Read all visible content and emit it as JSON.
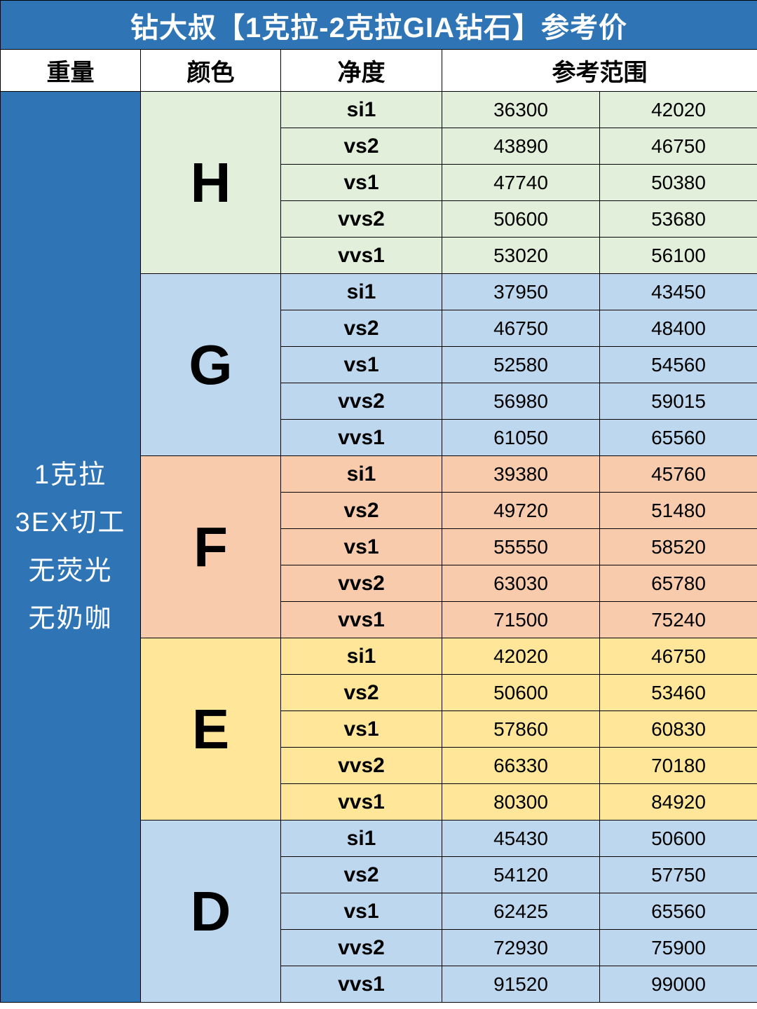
{
  "title": "钻大叔【1克拉-2克拉GIA钻石】参考价",
  "headers": {
    "weight": "重量",
    "color": "颜色",
    "clarity": "净度",
    "range": "参考范围"
  },
  "weight_lines": [
    "1克拉",
    "3EX切工",
    "无荧光",
    "无奶咖"
  ],
  "styling": {
    "title_bg": "#2f75b5",
    "title_color": "#ffffff",
    "header_bg": "#ffffff",
    "weight_bg": "#2f75b5",
    "weight_color": "#ffffff",
    "border_color": "#000000",
    "title_fontsize": 40,
    "header_fontsize": 34,
    "letter_fontsize": 80,
    "clarity_fontsize": 30,
    "price_fontsize": 28
  },
  "groups": [
    {
      "letter": "H",
      "letter_bg": "#e2efda",
      "clarity_bg": "#e2efda",
      "price_bg": "#e2efda",
      "rows": [
        {
          "clarity": "si1",
          "low": "36300",
          "high": "42020"
        },
        {
          "clarity": "vs2",
          "low": "43890",
          "high": "46750"
        },
        {
          "clarity": "vs1",
          "low": "47740",
          "high": "50380"
        },
        {
          "clarity": "vvs2",
          "low": "50600",
          "high": "53680"
        },
        {
          "clarity": "vvs1",
          "low": "53020",
          "high": "56100"
        }
      ]
    },
    {
      "letter": "G",
      "letter_bg": "#bdd7ee",
      "clarity_bg": "#bdd7ee",
      "price_bg": "#bdd7ee",
      "rows": [
        {
          "clarity": "si1",
          "low": "37950",
          "high": "43450"
        },
        {
          "clarity": "vs2",
          "low": "46750",
          "high": "48400"
        },
        {
          "clarity": "vs1",
          "low": "52580",
          "high": "54560"
        },
        {
          "clarity": "vvs2",
          "low": "56980",
          "high": "59015"
        },
        {
          "clarity": "vvs1",
          "low": "61050",
          "high": "65560"
        }
      ]
    },
    {
      "letter": "F",
      "letter_bg": "#f8cbad",
      "clarity_bg": "#f8cbad",
      "price_bg": "#f8cbad",
      "rows": [
        {
          "clarity": "si1",
          "low": "39380",
          "high": "45760"
        },
        {
          "clarity": "vs2",
          "low": "49720",
          "high": "51480"
        },
        {
          "clarity": "vs1",
          "low": "55550",
          "high": "58520"
        },
        {
          "clarity": "vvs2",
          "low": "63030",
          "high": "65780"
        },
        {
          "clarity": "vvs1",
          "low": "71500",
          "high": "75240"
        }
      ]
    },
    {
      "letter": "E",
      "letter_bg": "#ffe699",
      "clarity_bg": "#ffe699",
      "price_bg": "#ffe699",
      "rows": [
        {
          "clarity": "si1",
          "low": "42020",
          "high": "46750"
        },
        {
          "clarity": "vs2",
          "low": "50600",
          "high": "53460"
        },
        {
          "clarity": "vs1",
          "low": "57860",
          "high": "60830"
        },
        {
          "clarity": "vvs2",
          "low": "66330",
          "high": "70180"
        },
        {
          "clarity": "vvs1",
          "low": "80300",
          "high": "84920"
        }
      ]
    },
    {
      "letter": "D",
      "letter_bg": "#bdd7ee",
      "clarity_bg": "#bdd7ee",
      "price_bg": "#bdd7ee",
      "rows": [
        {
          "clarity": "si1",
          "low": "45430",
          "high": "50600"
        },
        {
          "clarity": "vs2",
          "low": "54120",
          "high": "57750"
        },
        {
          "clarity": "vs1",
          "low": "62425",
          "high": "65560"
        },
        {
          "clarity": "vvs2",
          "low": "72930",
          "high": "75900"
        },
        {
          "clarity": "vvs1",
          "low": "91520",
          "high": "99000"
        }
      ]
    }
  ]
}
